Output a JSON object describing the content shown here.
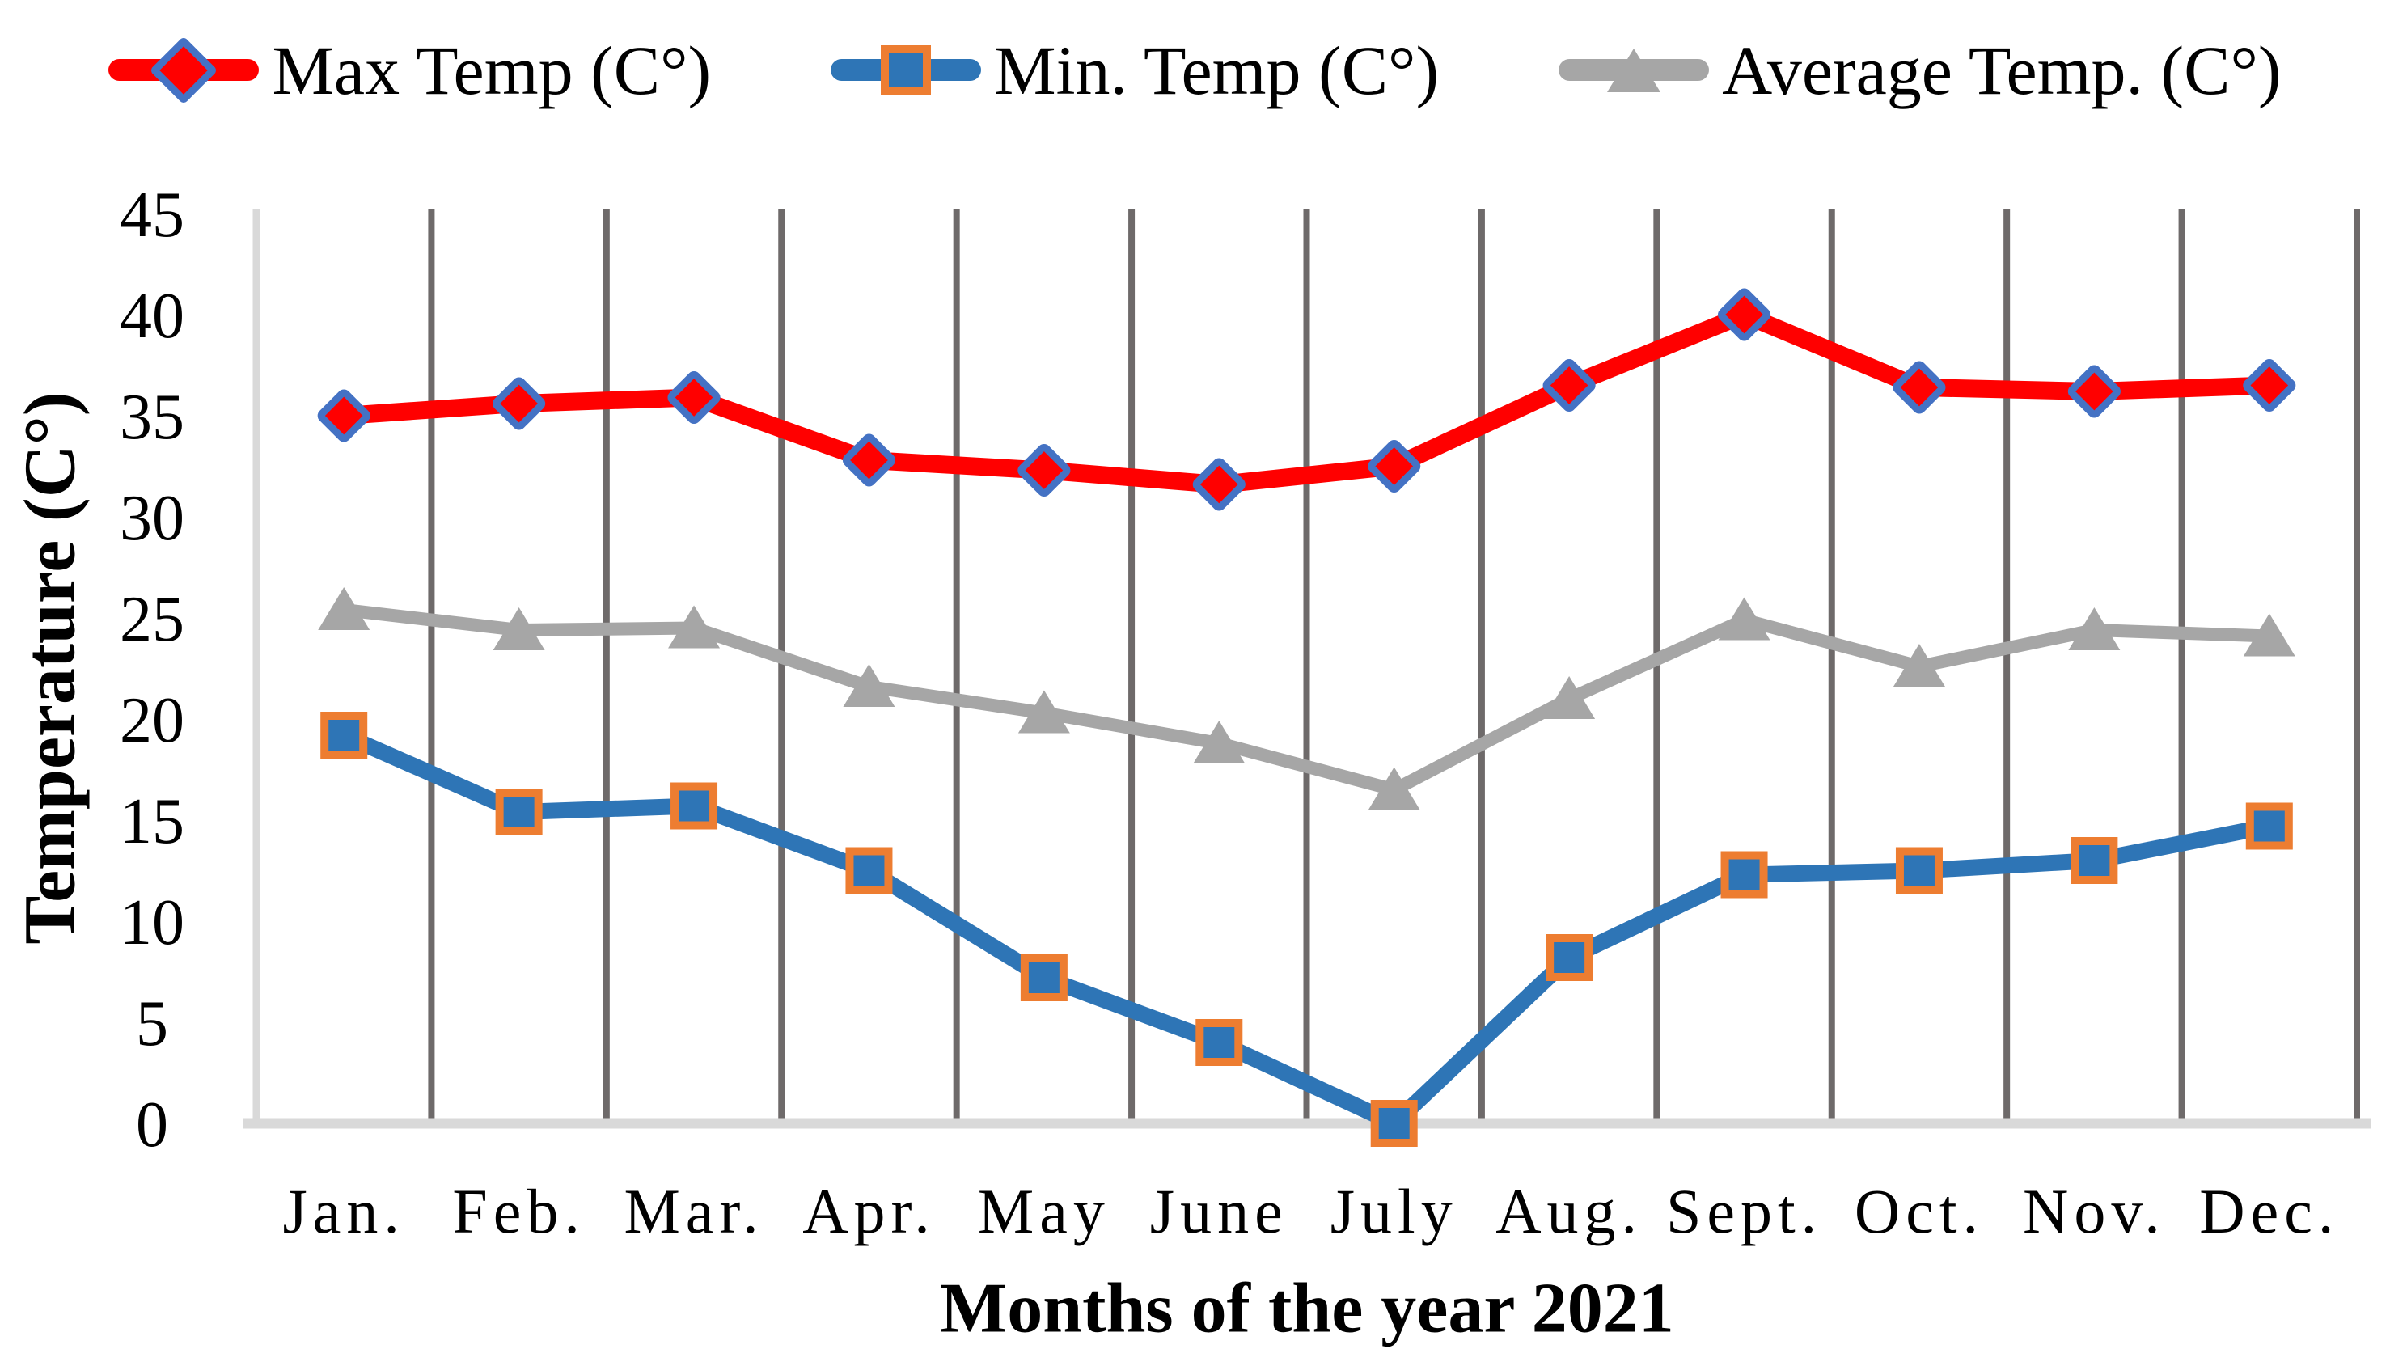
{
  "legend": {
    "items": [
      {
        "label": "Max Temp (C°)",
        "marker": "diamond"
      },
      {
        "label": "Min. Temp (C°)",
        "marker": "square"
      },
      {
        "label": "Average Temp. (C°)",
        "marker": "triangle"
      }
    ]
  },
  "y_axis": {
    "title": "Temperature (C°)",
    "ticks": [
      0,
      5,
      10,
      15,
      20,
      25,
      30,
      35,
      40,
      45
    ]
  },
  "x_axis": {
    "title": "Months of the year 2021",
    "labels": [
      "Jan.",
      "Feb.",
      "Mar.",
      "Apr.",
      "May",
      "June",
      "July",
      "Aug.",
      "Sept.",
      "Oct.",
      "Nov.",
      "Dec."
    ]
  },
  "chart_data": {
    "type": "line",
    "title": "",
    "xlabel": "Months of the year 2021",
    "ylabel": "Temperature (C°)",
    "categories": [
      "Jan.",
      "Feb.",
      "Mar.",
      "Apr.",
      "May",
      "June",
      "July",
      "Aug.",
      "Sept.",
      "Oct.",
      "Nov.",
      "Dec."
    ],
    "series": [
      {
        "name": "Max Temp (C°)",
        "values": [
          35.0,
          35.6,
          35.9,
          32.8,
          32.3,
          31.6,
          32.5,
          36.5,
          40.0,
          36.4,
          36.2,
          36.5
        ],
        "line_color": "#FF0000",
        "marker": "diamond",
        "marker_fill": "#FF0000",
        "marker_border": "#4472C4"
      },
      {
        "name": "Min. Temp (C°)",
        "values": [
          19.2,
          15.4,
          15.7,
          12.5,
          7.2,
          4.0,
          0.0,
          8.2,
          12.3,
          12.5,
          13.0,
          14.7
        ],
        "line_color": "#2E75B6",
        "marker": "square",
        "marker_fill": "#2E75B6",
        "marker_border": "#ED7D31"
      },
      {
        "name": "Average Temp. (C°)",
        "values": [
          25.4,
          24.4,
          24.5,
          21.6,
          20.3,
          18.8,
          16.5,
          21.0,
          24.9,
          22.6,
          24.4,
          24.1
        ],
        "line_color": "#A6A6A6",
        "marker": "triangle",
        "marker_fill": "#A6A6A6",
        "marker_border": "#A6A6A6"
      }
    ],
    "ylim": [
      0,
      45
    ],
    "y_major_unit": 5,
    "grid": "vertical-only",
    "legend_position": "top"
  },
  "colors": {
    "gridline": "#6E6A6A",
    "axis_line": "#D9D9D9",
    "text": "#000000",
    "background": "#FFFFFF"
  }
}
